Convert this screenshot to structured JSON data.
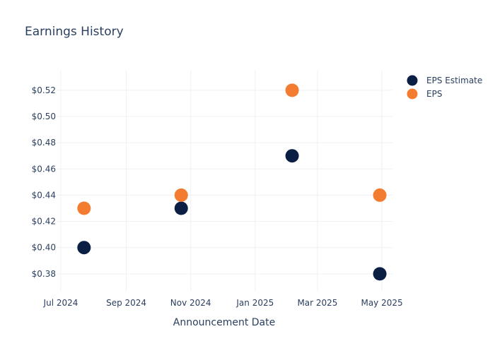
{
  "chart_data": {
    "type": "scatter",
    "title": "Earnings History",
    "xlabel": "Announcement Date",
    "ylabel": "",
    "x_ticks": [
      "Jul 2024",
      "Sep 2024",
      "Nov 2024",
      "Jan 2025",
      "Mar 2025",
      "May 2025"
    ],
    "y_ticks": [
      "$0.38",
      "$0.40",
      "$0.42",
      "$0.44",
      "$0.46",
      "$0.48",
      "$0.50",
      "$0.52"
    ],
    "ylim": [
      0.367,
      0.535
    ],
    "xlim": [
      "2024-06-27",
      "2025-05-11"
    ],
    "grid": true,
    "legend_position": "top-right",
    "series": [
      {
        "name": "EPS Estimate",
        "color": "#0b1f45",
        "points": [
          {
            "x": "2024-07-23",
            "y": 0.4
          },
          {
            "x": "2024-10-23",
            "y": 0.43
          },
          {
            "x": "2025-02-05",
            "y": 0.47
          },
          {
            "x": "2025-04-29",
            "y": 0.38
          }
        ]
      },
      {
        "name": "EPS",
        "color": "#f47c30",
        "points": [
          {
            "x": "2024-07-23",
            "y": 0.43
          },
          {
            "x": "2024-10-23",
            "y": 0.44
          },
          {
            "x": "2025-02-05",
            "y": 0.52
          },
          {
            "x": "2025-04-29",
            "y": 0.44
          }
        ]
      }
    ]
  }
}
